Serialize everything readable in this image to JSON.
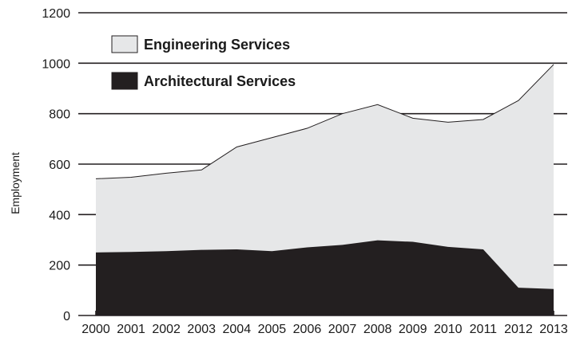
{
  "chart_data": {
    "type": "area",
    "stacked": true,
    "x": [
      "2000",
      "2001",
      "2002",
      "2003",
      "2004",
      "2005",
      "2006",
      "2007",
      "2008",
      "2009",
      "2010",
      "2011",
      "2012",
      "2013"
    ],
    "series": [
      {
        "name": "Architectural Services",
        "color": "#231f20",
        "values": [
          250,
          252,
          255,
          260,
          262,
          255,
          270,
          280,
          298,
          292,
          272,
          262,
          110,
          105
        ]
      },
      {
        "name": "Engineering Services",
        "color": "#e6e7e8",
        "values": [
          292,
          296,
          309,
          317,
          406,
          450,
          472,
          520,
          538,
          490,
          494,
          515,
          742,
          890
        ]
      }
    ],
    "totals": [
      542,
      548,
      564,
      577,
      668,
      705,
      742,
      800,
      836,
      782,
      766,
      777,
      852,
      995
    ],
    "xlabel": "",
    "ylabel": "Employment",
    "ylim": [
      0,
      1200
    ],
    "yticks": [
      "0",
      "200",
      "400",
      "600",
      "800",
      "1000",
      "1200"
    ],
    "grid": "horizontal",
    "legend_position": "top-left"
  }
}
